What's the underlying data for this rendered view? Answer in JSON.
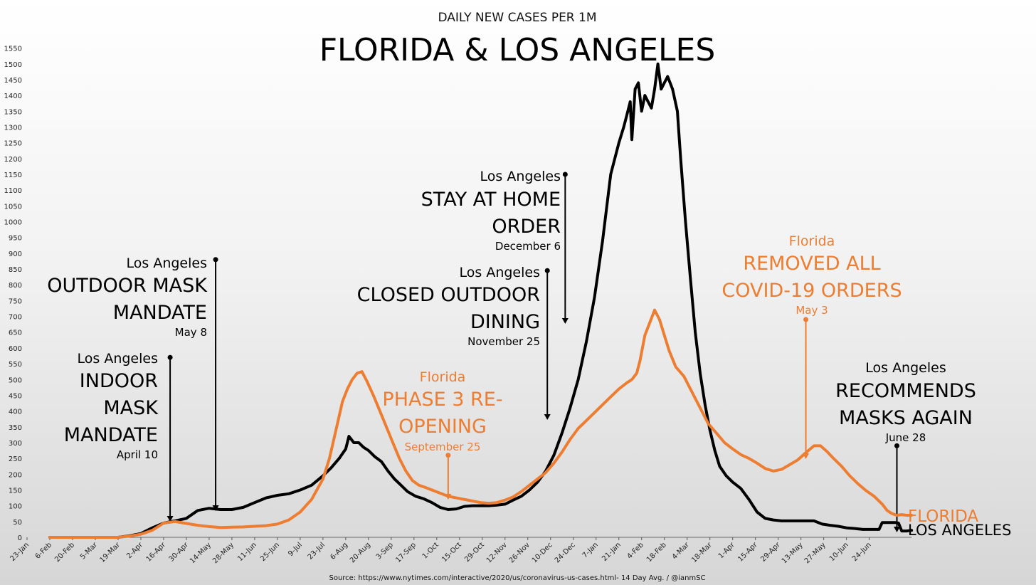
{
  "chart_data": {
    "type": "line",
    "subtitle": "DAILY NEW CASES PER 1M",
    "title": "FLORIDA & LOS ANGELES",
    "source": "Source: https://www.nytimes.com/interactive/2020/us/coronavirus-us-cases.html- 14 Day Avg. / @ianmSC",
    "ylim": [
      0,
      1550
    ],
    "y_ticks": [
      0,
      50,
      100,
      150,
      200,
      250,
      300,
      350,
      400,
      450,
      500,
      550,
      600,
      650,
      700,
      750,
      800,
      850,
      900,
      950,
      1000,
      1050,
      1100,
      1150,
      1200,
      1250,
      1300,
      1350,
      1400,
      1450,
      1500,
      1550
    ],
    "x_ticks": [
      "23-Jan",
      "6-Feb",
      "20-Feb",
      "5-Mar",
      "19-Mar",
      "2-Apr",
      "16-Apr",
      "30-Apr",
      "14-May",
      "28-May",
      "11-Jun",
      "25-Jun",
      "9-Jul",
      "23-Jul",
      "6-Aug",
      "20-Aug",
      "3-Sep",
      "17-Sep",
      "1-Oct",
      "15-Oct",
      "29-Oct",
      "12-Nov",
      "26-Nov",
      "10-Dec",
      "24-Dec",
      "7-Jan",
      "21-Jan",
      "4-Feb",
      "18-Feb",
      "4-Mar",
      "18-Mar",
      "1-Apr",
      "15-Apr",
      "29-Apr",
      "13-May",
      "27-May",
      "10-Jun",
      "24-Jun"
    ],
    "series": [
      {
        "name": "FLORIDA",
        "color": "#ED7D31",
        "values": [
          [
            0,
            0
          ],
          [
            42,
            0
          ],
          [
            49,
            4
          ],
          [
            56,
            10
          ],
          [
            63,
            22
          ],
          [
            70,
            45
          ],
          [
            77,
            50
          ],
          [
            84,
            44
          ],
          [
            91,
            38
          ],
          [
            98,
            34
          ],
          [
            105,
            31
          ],
          [
            112,
            32
          ],
          [
            119,
            33
          ],
          [
            126,
            35
          ],
          [
            133,
            37
          ],
          [
            140,
            42
          ],
          [
            147,
            55
          ],
          [
            154,
            80
          ],
          [
            161,
            120
          ],
          [
            168,
            185
          ],
          [
            172,
            250
          ],
          [
            176,
            340
          ],
          [
            180,
            430
          ],
          [
            183,
            470
          ],
          [
            186,
            500
          ],
          [
            189,
            520
          ],
          [
            192,
            525
          ],
          [
            195,
            495
          ],
          [
            199,
            450
          ],
          [
            203,
            400
          ],
          [
            207,
            350
          ],
          [
            211,
            300
          ],
          [
            215,
            250
          ],
          [
            219,
            210
          ],
          [
            223,
            180
          ],
          [
            227,
            165
          ],
          [
            231,
            158
          ],
          [
            235,
            150
          ],
          [
            240,
            140
          ],
          [
            245,
            130
          ],
          [
            250,
            125
          ],
          [
            255,
            120
          ],
          [
            260,
            115
          ],
          [
            265,
            110
          ],
          [
            270,
            108
          ],
          [
            275,
            110
          ],
          [
            280,
            118
          ],
          [
            285,
            128
          ],
          [
            290,
            145
          ],
          [
            295,
            165
          ],
          [
            300,
            185
          ],
          [
            305,
            205
          ],
          [
            310,
            235
          ],
          [
            315,
            270
          ],
          [
            320,
            310
          ],
          [
            325,
            345
          ],
          [
            330,
            370
          ],
          [
            335,
            395
          ],
          [
            340,
            420
          ],
          [
            345,
            445
          ],
          [
            350,
            470
          ],
          [
            355,
            490
          ],
          [
            358,
            500
          ],
          [
            361,
            520
          ],
          [
            363,
            560
          ],
          [
            366,
            640
          ],
          [
            369,
            680
          ],
          [
            372,
            720
          ],
          [
            375,
            690
          ],
          [
            378,
            640
          ],
          [
            381,
            590
          ],
          [
            385,
            540
          ],
          [
            390,
            510
          ],
          [
            395,
            460
          ],
          [
            400,
            410
          ],
          [
            405,
            360
          ],
          [
            410,
            330
          ],
          [
            415,
            300
          ],
          [
            420,
            280
          ],
          [
            425,
            262
          ],
          [
            430,
            250
          ],
          [
            435,
            235
          ],
          [
            440,
            218
          ],
          [
            445,
            210
          ],
          [
            450,
            215
          ],
          [
            455,
            230
          ],
          [
            460,
            245
          ],
          [
            465,
            268
          ],
          [
            470,
            290
          ],
          [
            474,
            290
          ],
          [
            478,
            272
          ],
          [
            482,
            250
          ],
          [
            487,
            225
          ],
          [
            492,
            195
          ],
          [
            497,
            170
          ],
          [
            502,
            148
          ],
          [
            507,
            130
          ],
          [
            512,
            105
          ],
          [
            515,
            85
          ],
          [
            518,
            75
          ],
          [
            521,
            70
          ],
          [
            524,
            72
          ],
          [
            527,
            70
          ],
          [
            530,
            70
          ]
        ]
      },
      {
        "name": "LOS ANGELES",
        "color": "#000000",
        "values": [
          [
            0,
            0
          ],
          [
            42,
            0
          ],
          [
            49,
            5
          ],
          [
            56,
            12
          ],
          [
            63,
            30
          ],
          [
            70,
            45
          ],
          [
            77,
            52
          ],
          [
            84,
            60
          ],
          [
            91,
            85
          ],
          [
            98,
            92
          ],
          [
            105,
            88
          ],
          [
            112,
            88
          ],
          [
            119,
            95
          ],
          [
            126,
            110
          ],
          [
            133,
            125
          ],
          [
            140,
            133
          ],
          [
            147,
            138
          ],
          [
            154,
            150
          ],
          [
            161,
            165
          ],
          [
            168,
            195
          ],
          [
            173,
            220
          ],
          [
            178,
            250
          ],
          [
            182,
            280
          ],
          [
            184,
            320
          ],
          [
            187,
            300
          ],
          [
            190,
            300
          ],
          [
            193,
            285
          ],
          [
            196,
            275
          ],
          [
            200,
            255
          ],
          [
            204,
            240
          ],
          [
            208,
            210
          ],
          [
            212,
            185
          ],
          [
            216,
            165
          ],
          [
            220,
            145
          ],
          [
            225,
            130
          ],
          [
            230,
            122
          ],
          [
            235,
            110
          ],
          [
            240,
            95
          ],
          [
            245,
            88
          ],
          [
            250,
            90
          ],
          [
            255,
            98
          ],
          [
            260,
            100
          ],
          [
            265,
            100
          ],
          [
            270,
            100
          ],
          [
            275,
            102
          ],
          [
            280,
            105
          ],
          [
            285,
            118
          ],
          [
            290,
            130
          ],
          [
            295,
            150
          ],
          [
            300,
            175
          ],
          [
            305,
            210
          ],
          [
            310,
            260
          ],
          [
            315,
            330
          ],
          [
            320,
            410
          ],
          [
            325,
            500
          ],
          [
            330,
            620
          ],
          [
            335,
            760
          ],
          [
            340,
            940
          ],
          [
            345,
            1150
          ],
          [
            350,
            1250
          ],
          [
            353,
            1300
          ],
          [
            355,
            1340
          ],
          [
            357,
            1380
          ],
          [
            358,
            1260
          ],
          [
            360,
            1420
          ],
          [
            362,
            1440
          ],
          [
            364,
            1350
          ],
          [
            366,
            1400
          ],
          [
            368,
            1380
          ],
          [
            370,
            1360
          ],
          [
            372,
            1420
          ],
          [
            374,
            1500
          ],
          [
            376,
            1420
          ],
          [
            378,
            1440
          ],
          [
            380,
            1460
          ],
          [
            383,
            1420
          ],
          [
            386,
            1350
          ],
          [
            388,
            1200
          ],
          [
            391,
            1000
          ],
          [
            394,
            820
          ],
          [
            397,
            650
          ],
          [
            400,
            520
          ],
          [
            403,
            420
          ],
          [
            406,
            340
          ],
          [
            409,
            275
          ],
          [
            412,
            225
          ],
          [
            416,
            195
          ],
          [
            420,
            175
          ],
          [
            425,
            155
          ],
          [
            430,
            120
          ],
          [
            435,
            80
          ],
          [
            440,
            60
          ],
          [
            445,
            55
          ],
          [
            450,
            52
          ],
          [
            455,
            52
          ],
          [
            460,
            52
          ],
          [
            465,
            52
          ],
          [
            470,
            52
          ],
          [
            475,
            42
          ],
          [
            480,
            38
          ],
          [
            485,
            35
          ],
          [
            490,
            30
          ],
          [
            495,
            28
          ],
          [
            500,
            25
          ],
          [
            505,
            25
          ],
          [
            510,
            25
          ],
          [
            512,
            47
          ],
          [
            515,
            47
          ],
          [
            520,
            47
          ],
          [
            522,
            45
          ],
          [
            524,
            20
          ],
          [
            527,
            20
          ],
          [
            530,
            22
          ]
        ]
      }
    ],
    "end_labels": {
      "florida": "FLORIDA",
      "los_angeles": "LOS ANGELES"
    },
    "annotations": [
      {
        "id": "indoor-mask",
        "color": "#000000",
        "x": 74,
        "y_top": 570,
        "arrow": "down",
        "region": "Los Angeles",
        "lines": [
          "INDOOR",
          "MASK",
          "MANDATE"
        ],
        "date": "April 10"
      },
      {
        "id": "outdoor-mask",
        "color": "#000000",
        "x": 102,
        "y_top": 880,
        "arrow": "down",
        "region": "Los Angeles",
        "lines": [
          "OUTDOOR MASK",
          "MANDATE"
        ],
        "date": "May 8"
      },
      {
        "id": "phase3",
        "color": "#ED7D31",
        "x": 245,
        "y_top": 260,
        "arrow": "down",
        "region": "Florida",
        "lines": [
          "PHASE 3 RE-",
          "OPENING"
        ],
        "date": "September 25"
      },
      {
        "id": "closed-dining",
        "color": "#000000",
        "x": 306,
        "y_top": 845,
        "arrow": "down",
        "region": "Los Angeles",
        "lines": [
          "CLOSED OUTDOOR",
          "DINING"
        ],
        "date": "November 25"
      },
      {
        "id": "stay-home",
        "color": "#000000",
        "x": 317,
        "y_top": 1150,
        "arrow": "down",
        "region": "Los Angeles",
        "lines": [
          "STAY AT HOME",
          "ORDER"
        ],
        "date": "December 6"
      },
      {
        "id": "removed-orders",
        "color": "#ED7D31",
        "x": 465,
        "y_top": 690,
        "arrow": "down",
        "region": "Florida",
        "lines": [
          "REMOVED ALL",
          "COVID-19 ORDERS"
        ],
        "date": "May 3"
      },
      {
        "id": "masks-again",
        "color": "#000000",
        "x": 521,
        "y_top": 290,
        "arrow": "down",
        "region": "Los Angeles",
        "lines": [
          "RECOMMENDS",
          "MASKS AGAIN"
        ],
        "date": "June 28"
      }
    ]
  }
}
